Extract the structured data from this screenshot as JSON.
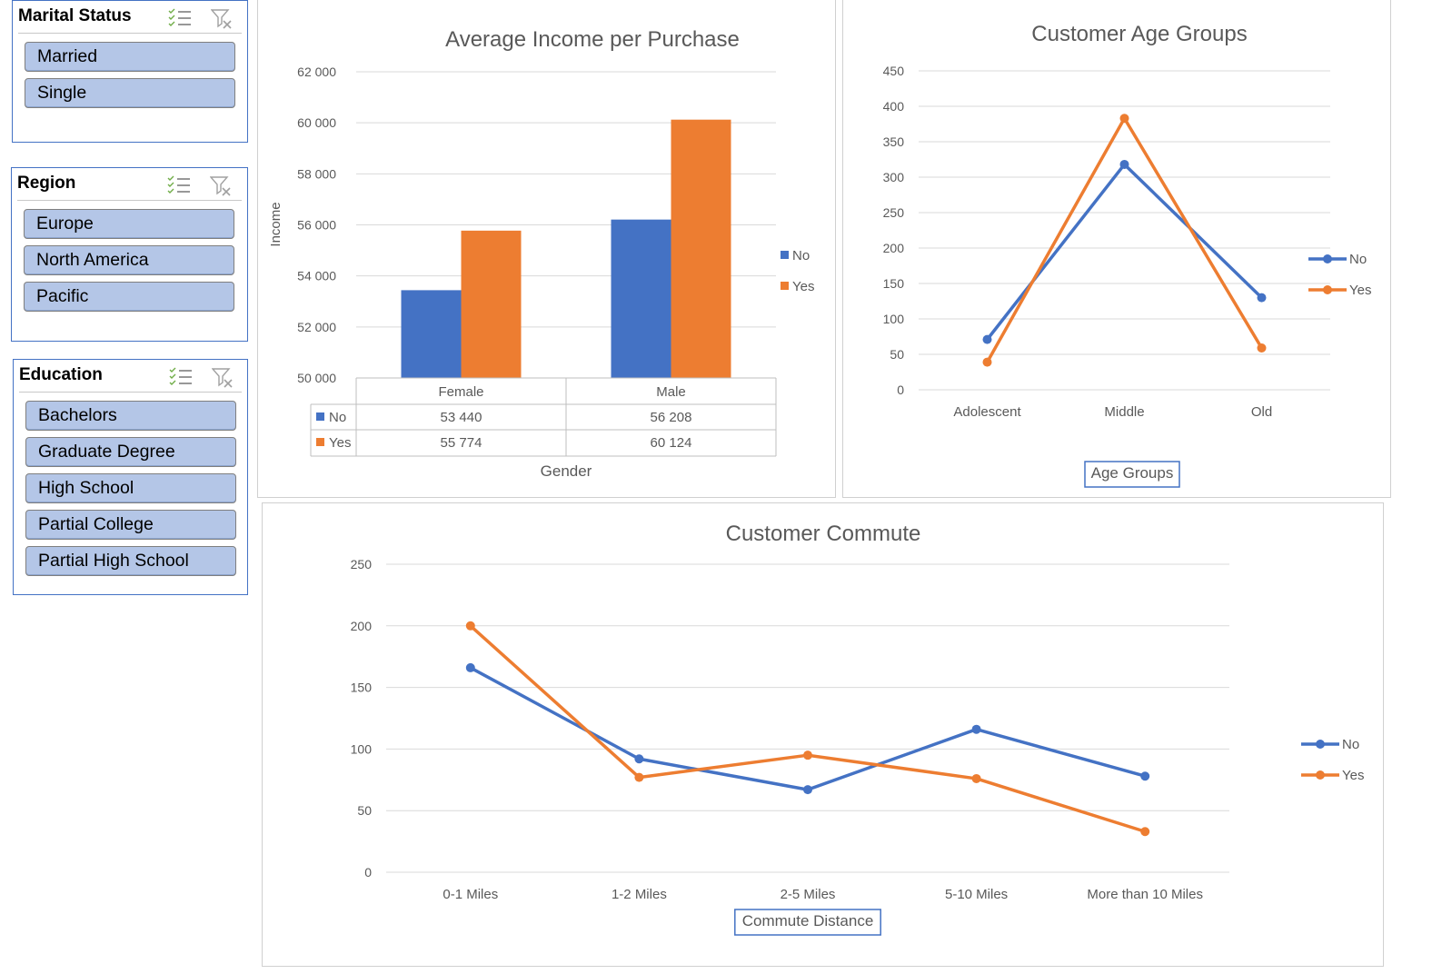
{
  "slicers": {
    "marital": {
      "title": "Marital Status",
      "items": [
        "Married",
        "Single"
      ]
    },
    "region": {
      "title": "Region",
      "items": [
        "Europe",
        "North America",
        "Pacific"
      ]
    },
    "education": {
      "title": "Education",
      "items": [
        "Bachelors",
        "Graduate Degree",
        "High School",
        "Partial College",
        "Partial High School"
      ]
    }
  },
  "icons": {
    "multi_select": "multi-select-icon",
    "clear_filter": "clear-filter-icon"
  },
  "colors": {
    "no": "#4472c4",
    "yes": "#ed7d31",
    "slicer_item": "#b4c6e7",
    "slicer_border": "#4472c4"
  },
  "chart_data": [
    {
      "type": "bar",
      "title": "Average Income per Purchase",
      "xlabel": "Gender",
      "ylabel": "Income",
      "categories": [
        "Female",
        "Male"
      ],
      "series": [
        {
          "name": "No",
          "values": [
            53440,
            56208
          ],
          "labels": [
            "53 440",
            "56 208"
          ]
        },
        {
          "name": "Yes",
          "values": [
            55774,
            60124
          ],
          "labels": [
            "55 774",
            "60 124"
          ]
        }
      ],
      "ylim": [
        50000,
        62000
      ],
      "yticks": [
        "50 000",
        "52 000",
        "54 000",
        "56 000",
        "58 000",
        "60 000",
        "62 000"
      ],
      "grid": true,
      "legend": "right",
      "data_table": true
    },
    {
      "type": "line",
      "title": "Customer Age Groups",
      "xlabel": "Age Groups",
      "categories": [
        "Adolescent",
        "Middle",
        "Old"
      ],
      "series": [
        {
          "name": "No",
          "values": [
            71,
            318,
            130
          ]
        },
        {
          "name": "Yes",
          "values": [
            39,
            383,
            59
          ]
        }
      ],
      "ylim": [
        0,
        450
      ],
      "yticks": [
        "0",
        "50",
        "100",
        "150",
        "200",
        "250",
        "300",
        "350",
        "400",
        "450"
      ],
      "grid": true,
      "legend": "right"
    },
    {
      "type": "line",
      "title": "Customer Commute",
      "xlabel": "Commute Distance",
      "categories": [
        "0-1 Miles",
        "1-2 Miles",
        "2-5 Miles",
        "5-10 Miles",
        "More than 10 Miles"
      ],
      "series": [
        {
          "name": "No",
          "values": [
            166,
            92,
            67,
            116,
            78
          ]
        },
        {
          "name": "Yes",
          "values": [
            200,
            77,
            95,
            76,
            33
          ]
        }
      ],
      "ylim": [
        0,
        250
      ],
      "yticks": [
        "0",
        "50",
        "100",
        "150",
        "200",
        "250"
      ],
      "grid": true,
      "legend": "right"
    }
  ]
}
